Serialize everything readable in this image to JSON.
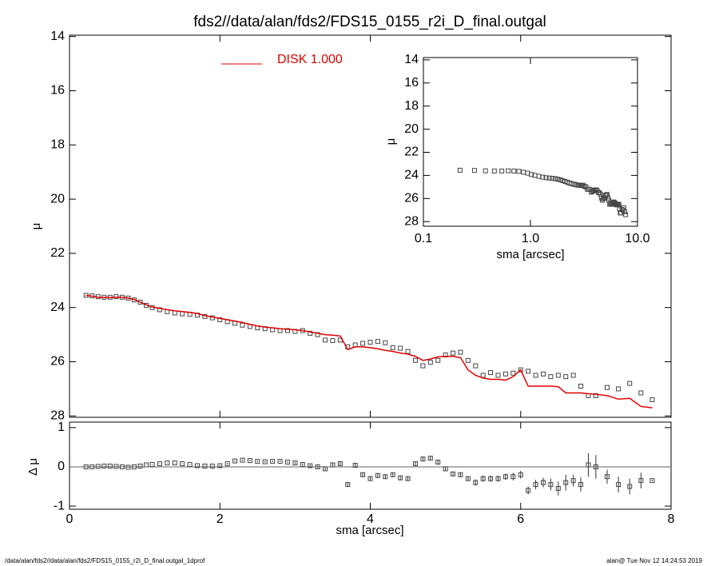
{
  "chart_data": [
    {
      "type": "scatter",
      "title": "fds2//data/alan/fds2/FDS15_0155_r2i_D_final.outgal",
      "ylabel": "μ",
      "xlim": [
        0,
        8
      ],
      "ylim": [
        28.05,
        13.95
      ],
      "yticks": [
        14,
        16,
        18,
        20,
        22,
        24,
        26,
        28
      ],
      "x": [
        0.22,
        0.3,
        0.38,
        0.46,
        0.54,
        0.62,
        0.7,
        0.78,
        0.86,
        0.94,
        1.02,
        1.1,
        1.2,
        1.3,
        1.4,
        1.5,
        1.6,
        1.7,
        1.8,
        1.9,
        2.0,
        2.1,
        2.2,
        2.3,
        2.4,
        2.5,
        2.6,
        2.7,
        2.8,
        2.9,
        3.0,
        3.1,
        3.2,
        3.3,
        3.4,
        3.5,
        3.6,
        3.7,
        3.8,
        3.9,
        4.0,
        4.1,
        4.2,
        4.3,
        4.4,
        4.5,
        4.6,
        4.7,
        4.8,
        4.9,
        5.0,
        5.1,
        5.2,
        5.3,
        5.4,
        5.5,
        5.6,
        5.7,
        5.8,
        5.9,
        6.0,
        6.1,
        6.2,
        6.3,
        6.4,
        6.5,
        6.6,
        6.7,
        6.8,
        6.9,
        7.0,
        7.15,
        7.3,
        7.45,
        7.6,
        7.75
      ],
      "series": [
        {
          "color": "#444444",
          "values": [
            23.55,
            23.57,
            23.6,
            23.62,
            23.62,
            23.6,
            23.62,
            23.65,
            23.72,
            23.8,
            23.92,
            24.0,
            24.08,
            24.15,
            24.2,
            24.23,
            24.25,
            24.28,
            24.33,
            24.38,
            24.45,
            24.52,
            24.58,
            24.65,
            24.7,
            24.75,
            24.78,
            24.82,
            24.85,
            24.85,
            24.88,
            24.85,
            24.95,
            25.0,
            25.2,
            25.22,
            25.2,
            25.45,
            25.38,
            25.32,
            25.28,
            25.25,
            25.3,
            25.48,
            25.5,
            25.62,
            25.95,
            26.15,
            26.02,
            25.95,
            25.75,
            25.68,
            25.65,
            25.95,
            26.15,
            26.5,
            26.4,
            26.5,
            26.45,
            26.42,
            26.3,
            26.35,
            26.5,
            26.45,
            26.55,
            26.5,
            26.55,
            26.5,
            26.9,
            27.25,
            27.25,
            26.95,
            27.0,
            26.8,
            27.15,
            27.4
          ]
        },
        {
          "name": "DISK  1.000",
          "color": "#e00000",
          "values": [
            23.55,
            23.58,
            23.62,
            23.63,
            23.63,
            23.62,
            23.62,
            23.65,
            23.7,
            23.8,
            23.9,
            23.98,
            24.03,
            24.08,
            24.12,
            24.15,
            24.18,
            24.22,
            24.3,
            24.35,
            24.4,
            24.45,
            24.5,
            24.55,
            24.62,
            24.68,
            24.72,
            24.75,
            24.78,
            24.8,
            24.82,
            24.85,
            24.9,
            24.95,
            25.0,
            25.02,
            25.05,
            25.55,
            25.45,
            25.45,
            25.48,
            25.52,
            25.58,
            25.62,
            25.68,
            25.72,
            25.8,
            25.95,
            25.9,
            25.82,
            25.8,
            25.8,
            25.85,
            26.3,
            26.5,
            26.6,
            26.65,
            26.65,
            26.68,
            26.55,
            26.3,
            26.9,
            26.9,
            26.9,
            26.9,
            26.92,
            27.15,
            27.15,
            27.15,
            27.18,
            27.2,
            27.25,
            27.38,
            27.35,
            27.65,
            27.7
          ]
        }
      ]
    },
    {
      "type": "errorbar",
      "xlabel": "sma [arcsec]",
      "ylabel": "Δ μ",
      "xlim": [
        0,
        8
      ],
      "ylim": [
        -1.08,
        1.14
      ],
      "xticks": [
        0,
        2,
        4,
        6,
        8
      ],
      "yticks": [
        1,
        0,
        -1
      ],
      "values": [
        0,
        0,
        0.01,
        0.02,
        0.02,
        0.01,
        0,
        -0.01,
        0,
        0.02,
        0.05,
        0.06,
        0.08,
        0.1,
        0.1,
        0.08,
        0.06,
        0.03,
        0.02,
        0.02,
        0.03,
        0.08,
        0.15,
        0.17,
        0.16,
        0.14,
        0.13,
        0.14,
        0.14,
        0.12,
        0.1,
        0.06,
        0.03,
        0,
        -0.05,
        0.05,
        0.08,
        -0.45,
        0.04,
        -0.2,
        -0.3,
        -0.22,
        -0.25,
        -0.2,
        -0.28,
        -0.3,
        0.08,
        0.2,
        0.22,
        0.12,
        -0.05,
        -0.18,
        -0.2,
        -0.3,
        -0.4,
        -0.3,
        -0.3,
        -0.3,
        -0.25,
        -0.25,
        -0.2,
        -0.6,
        -0.45,
        -0.4,
        -0.45,
        -0.55,
        -0.4,
        -0.35,
        -0.45,
        0.05,
        0,
        -0.25,
        -0.45,
        -0.5,
        -0.35,
        -0.35
      ],
      "errors": [
        0.01,
        0.01,
        0.01,
        0.01,
        0.01,
        0.01,
        0.01,
        0.01,
        0.01,
        0.01,
        0.01,
        0.01,
        0.01,
        0.01,
        0.01,
        0.01,
        0.01,
        0.01,
        0.01,
        0.01,
        0.02,
        0.02,
        0.02,
        0.02,
        0.02,
        0.02,
        0.02,
        0.02,
        0.02,
        0.02,
        0.03,
        0.03,
        0.03,
        0.03,
        0.04,
        0.04,
        0.05,
        0.06,
        0.05,
        0.06,
        0.06,
        0.06,
        0.06,
        0.06,
        0.06,
        0.06,
        0.05,
        0.06,
        0.06,
        0.06,
        0.06,
        0.06,
        0.06,
        0.06,
        0.08,
        0.08,
        0.08,
        0.08,
        0.08,
        0.1,
        0.1,
        0.1,
        0.12,
        0.12,
        0.15,
        0.18,
        0.2,
        0.15,
        0.18,
        0.3,
        0.3,
        0.18,
        0.2,
        0.2,
        0.2,
        0.02
      ]
    },
    {
      "type": "scatter",
      "xlabel": "sma [arcsec]",
      "ylabel": "μ",
      "xlog": true,
      "xlim": [
        0.1,
        10
      ],
      "ylim": [
        28.4,
        13.8
      ],
      "xticks": [
        0.1,
        {
          "value": 1,
          "label": "1.0"
        },
        {
          "value": 10,
          "label": "10.0"
        }
      ],
      "yticks": [
        14,
        16,
        18,
        20,
        22,
        24,
        26,
        28
      ]
    }
  ],
  "footer": {
    "left": "/data/alan/fds2//data/alan/fds2/FDS15_0155_r2i_D_final.outgal_1dprof",
    "right": "alan@  Tue Nov 12 14:24:53 2019"
  }
}
